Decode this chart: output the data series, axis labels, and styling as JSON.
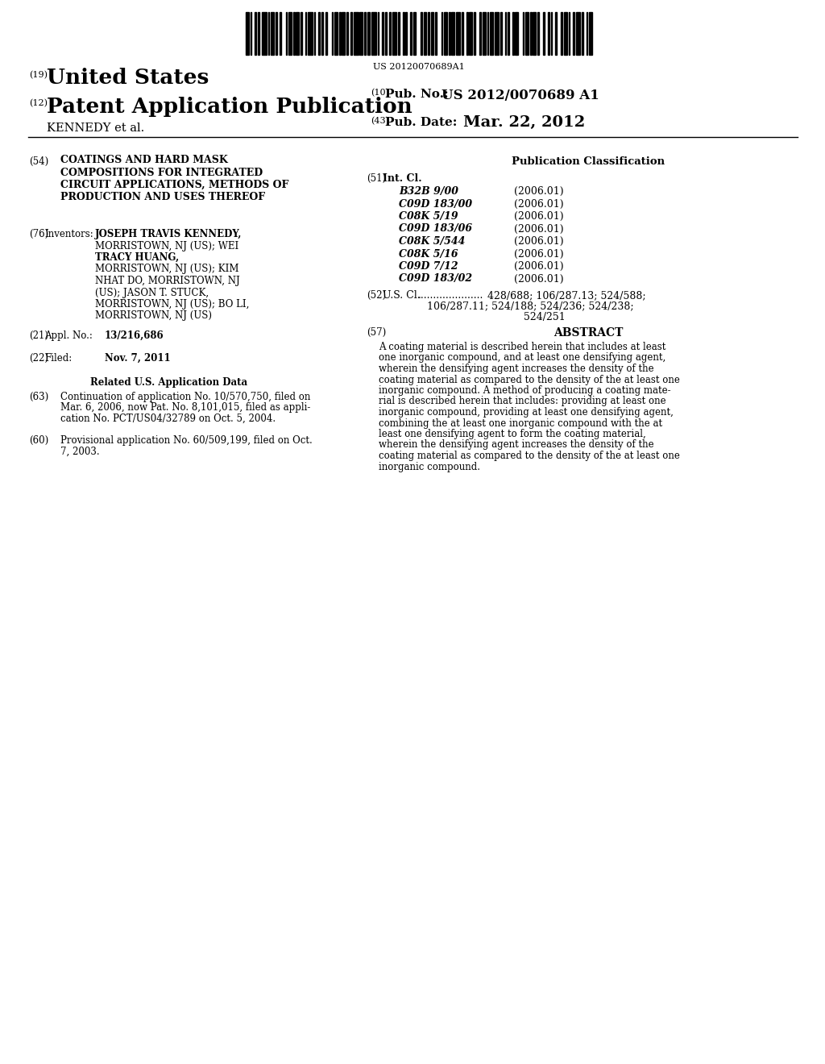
{
  "background_color": "#ffffff",
  "barcode_text": "US 20120070689A1",
  "tag19": "(19)",
  "united_states": "United States",
  "tag12": "(12)",
  "patent_app_pub": "Patent Application Publication",
  "tag10": "(10)",
  "pub_no_label": "Pub. No.:",
  "pub_no_value": "US 2012/0070689 A1",
  "kennedy": "KENNEDY et al.",
  "tag43": "(43)",
  "pub_date_label": "Pub. Date:",
  "pub_date_value": "Mar. 22, 2012",
  "tag54": "(54)",
  "title_lines": [
    "COATINGS AND HARD MASK",
    "COMPOSITIONS FOR INTEGRATED",
    "CIRCUIT APPLICATIONS, METHODS OF",
    "PRODUCTION AND USES THEREOF"
  ],
  "pub_class_header": "Publication Classification",
  "tag51": "(51)",
  "int_cl_label": "Int. Cl.",
  "int_cl_entries": [
    [
      "B32B 9/00",
      "(2006.01)"
    ],
    [
      "C09D 183/00",
      "(2006.01)"
    ],
    [
      "C08K 5/19",
      "(2006.01)"
    ],
    [
      "C09D 183/06",
      "(2006.01)"
    ],
    [
      "C08K 5/544",
      "(2006.01)"
    ],
    [
      "C08K 5/16",
      "(2006.01)"
    ],
    [
      "C09D 7/12",
      "(2006.01)"
    ],
    [
      "C09D 183/02",
      "(2006.01)"
    ]
  ],
  "tag52": "(52)",
  "us_cl_label": "U.S. Cl.",
  "us_cl_dots": ".....................",
  "us_cl_value1": "428/688; 106/287.13; 524/588;",
  "us_cl_value2": "106/287.11; 524/188; 524/236; 524/238;",
  "us_cl_value3": "524/251",
  "tag57": "(57)",
  "abstract_header": "ABSTRACT",
  "abstract_lines": [
    "A coating material is described herein that includes at least",
    "one inorganic compound, and at least one densifying agent,",
    "wherein the densifying agent increases the density of the",
    "coating material as compared to the density of the at least one",
    "inorganic compound. A method of producing a coating mate-",
    "rial is described herein that includes: providing at least one",
    "inorganic compound, providing at least one densifying agent,",
    "combining the at least one inorganic compound with the at",
    "least one densifying agent to form the coating material,",
    "wherein the densifying agent increases the density of the",
    "coating material as compared to the density of the at least one",
    "inorganic compound."
  ],
  "tag76": "(76)",
  "inventors_label": "Inventors:",
  "inventors_lines": [
    [
      "JOSEPH TRAVIS KENNEDY,",
      true
    ],
    [
      "MORRISTOWN, NJ (US); WEI",
      false
    ],
    [
      "TRACY HUANG,",
      true
    ],
    [
      "MORRISTOWN, NJ (US); KIM",
      false
    ],
    [
      "NHAT DO, MORRISTOWN, NJ",
      false
    ],
    [
      "(US); JASON T. STUCK,",
      false
    ],
    [
      "MORRISTOWN, NJ (US); BO LI,",
      false
    ],
    [
      "MORRISTOWN, NJ (US)",
      false
    ]
  ],
  "tag21": "(21)",
  "appl_no_label": "Appl. No.:",
  "appl_no_value": "13/216,686",
  "tag22": "(22)",
  "filed_label": "Filed:",
  "filed_value": "Nov. 7, 2011",
  "related_header": "Related U.S. Application Data",
  "tag63": "(63)",
  "cont_lines": [
    "Continuation of application No. 10/570,750, filed on",
    "Mar. 6, 2006, now Pat. No. 8,101,015, filed as appli-",
    "cation No. PCT/US04/32789 on Oct. 5, 2004."
  ],
  "tag60": "(60)",
  "prov_lines": [
    "Provisional application No. 60/509,199, filed on Oct.",
    "7, 2003."
  ]
}
